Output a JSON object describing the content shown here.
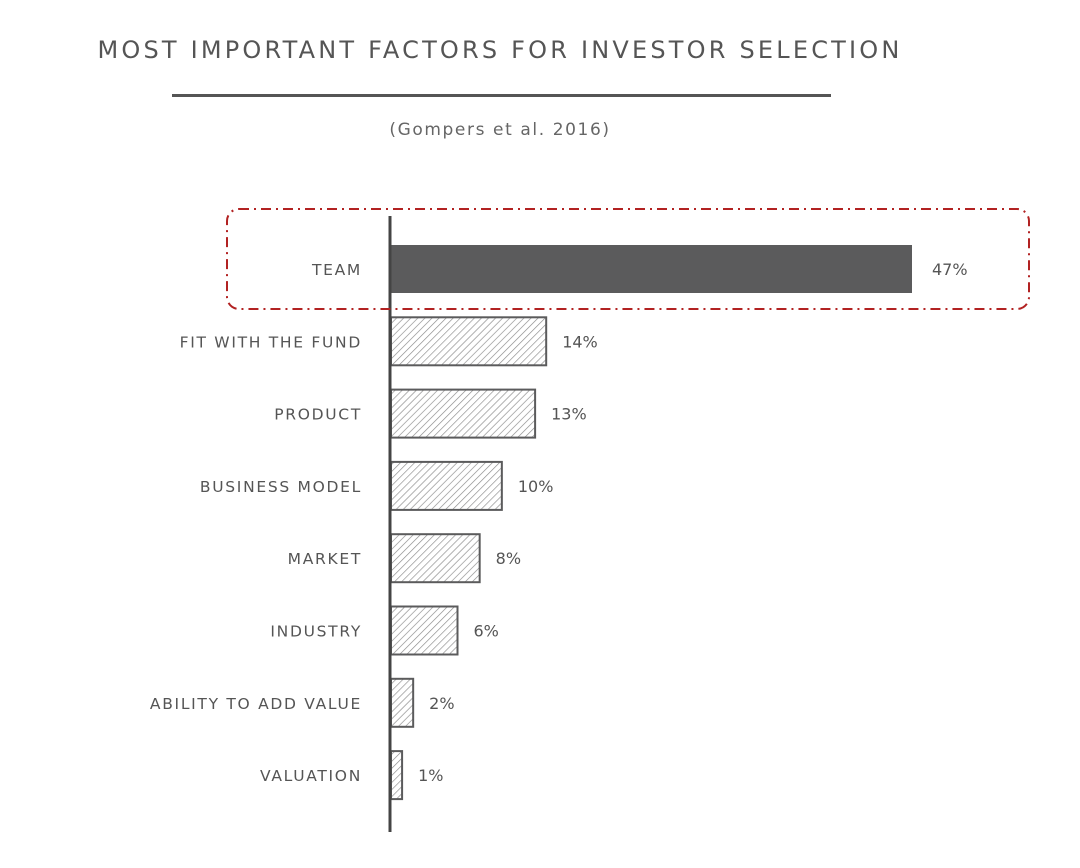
{
  "chart_data": {
    "type": "bar",
    "orientation": "horizontal",
    "title": "MOST IMPORTANT FACTORS FOR INVESTOR SELECTION",
    "subtitle": "(Gompers et al. 2016)",
    "categories": [
      "TEAM",
      "FIT WITH THE FUND",
      "PRODUCT",
      "BUSINESS MODEL",
      "MARKET",
      "INDUSTRY",
      "ABILITY TO ADD VALUE",
      "VALUATION"
    ],
    "values": [
      47,
      14,
      13,
      10,
      8,
      6,
      2,
      1
    ],
    "value_labels": [
      "47%",
      "14%",
      "13%",
      "10%",
      "8%",
      "6%",
      "2%",
      "1%"
    ],
    "unit": "%",
    "xlim": [
      0,
      47
    ],
    "grid": false,
    "legend": "none",
    "highlighted_category": "TEAM",
    "colors": {
      "highlight_bar": "#5b5b5c",
      "hatched_bar_stroke": "#5b5b5c",
      "hatch_lines": "#8a8a8a",
      "axis": "#444444",
      "text": "#555555",
      "highlight_box": "#b22222"
    }
  }
}
